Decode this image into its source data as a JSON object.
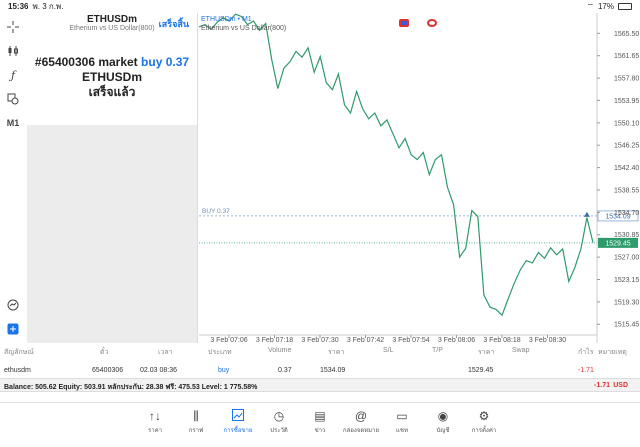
{
  "status": {
    "time": "15:36",
    "date": "พ. 3 ก.พ.",
    "battery": "17%"
  },
  "panel": {
    "title": "ETHUSDm",
    "subtitle": "Etherium vs US Dollar(800)",
    "done": "เสร็จสิ้น",
    "order_line1": "#65400306 market",
    "order_buy": "buy 0.37",
    "order_line2": "ETHUSDm",
    "order_line3": "เสร็จแล้ว"
  },
  "toolbar": {
    "timeframe": "M1"
  },
  "chart": {
    "symbol": "ETHUSDm • M1",
    "description": "Etherium vs US Dollar(800)",
    "buy_line_label": "BUY 0.37",
    "buy_price_tag": "1534.09",
    "current_price_tag": "1529.45"
  },
  "chart_data": {
    "type": "line",
    "x_labels": [
      "3 Feb 07:06",
      "3 Feb 07:18",
      "3 Feb 07:30",
      "3 Feb 07:42",
      "3 Feb 07:54",
      "3 Feb 08:06",
      "3 Feb 08:18",
      "3 Feb 08:30"
    ],
    "y_ticks": [
      "1565.50",
      "1561.65",
      "1557.80",
      "1553.95",
      "1550.10",
      "1546.25",
      "1542.40",
      "1538.55",
      "1534.70",
      "1530.85",
      "1527.00",
      "1523.15",
      "1519.30",
      "1515.45"
    ],
    "ylim": [
      1513.6,
      1569.0
    ],
    "series": [
      {
        "color": "#2e9b6a",
        "values": [
          1566.6,
          1567.0,
          1566.2,
          1567.4,
          1568.2,
          1567.6,
          1568.8,
          1568.4,
          1567.0,
          1567.6,
          1566.0,
          1567.2,
          1562.0,
          1556.0,
          1559.5,
          1560.6,
          1562.4,
          1561.4,
          1563.0,
          1558.8,
          1561.5,
          1557.0,
          1555.8,
          1558.5,
          1553.2,
          1551.8,
          1555.5,
          1552.5,
          1550.8,
          1551.8,
          1549.6,
          1550.6,
          1548.2,
          1545.8,
          1547.4,
          1544.6,
          1543.8,
          1545.0,
          1541.2,
          1543.8,
          1544.6,
          1539.0,
          1536.0,
          1533.8,
          1531.0,
          1534.5,
          1531.8,
          1520.0,
          1518.4,
          1518.0,
          1517.4,
          1519.2,
          1522.0,
          1524.8,
          1526.4,
          1526.0,
          1528.0,
          1527.2,
          1528.6,
          1527.4,
          1528.4,
          1523.0,
          1525.5,
          1528.2,
          1533.6,
          1529.5
        ]
      }
    ],
    "series_raw": [
      1566.6,
      1567.0,
      1566.2,
      1567.4,
      1568.2,
      1567.6,
      1568.8,
      1568.4,
      1567.0,
      1567.6,
      1566.0,
      1567.2,
      1561.0,
      1556.0,
      1559.5,
      1560.6,
      1562.4,
      1561.4,
      1563.0,
      1558.8,
      1561.5,
      1557.0,
      1555.8,
      1558.5,
      1553.2,
      1551.8,
      1555.5,
      1552.5,
      1550.8,
      1551.8,
      1549.6,
      1550.6,
      1548.2,
      1545.8,
      1547.4,
      1544.6,
      1543.8,
      1545.0,
      1541.2,
      1543.8,
      1544.6,
      1539.0,
      1536.0,
      1527.0,
      1528.5,
      1535.0,
      1534.0,
      1520.5,
      1518.4,
      1518.0,
      1517.0,
      1519.8,
      1522.5,
      1524.8,
      1526.4,
      1526.0,
      1527.8,
      1526.8,
      1528.6,
      1527.4,
      1528.4,
      1522.8,
      1525.2,
      1528.4,
      1533.8,
      1529.5
    ],
    "buy_level": 1534.09,
    "current_level": 1529.45
  },
  "table": {
    "headers": [
      "สัญลักษณ์",
      "ตั๋ว",
      "เวลา",
      "ประเภท",
      "Volume",
      "ราคา",
      "S/L",
      "T/P",
      "ราคา",
      "Swap",
      "กำไร",
      "หมายเหตุ"
    ],
    "row": {
      "symbol": "ethusdm",
      "ticket": "65400306",
      "time": "02.03 08:36",
      "type": "buy",
      "volume": "0.37",
      "open_price": "1534.09",
      "price": "1529.45",
      "profit": "-1.71"
    }
  },
  "balance": {
    "text": "Balance: 505.62 Equity: 503.91 หลักประกัน: 28.38 ฟรี: 475.53 Level: 1 775.58%",
    "total": "-1.71",
    "currency": "USD"
  },
  "tabs": [
    {
      "label": "ราคา",
      "icon": "↑↓"
    },
    {
      "label": "กราฟ",
      "icon": "⫼"
    },
    {
      "label": "การซื้อขาย",
      "icon": "📈"
    },
    {
      "label": "ประวัติ",
      "icon": "◷"
    },
    {
      "label": "ข่าว",
      "icon": "▤"
    },
    {
      "label": "กล่องจดหมาย",
      "icon": "@"
    },
    {
      "label": "แชท",
      "icon": "▭"
    },
    {
      "label": "บัญชี",
      "icon": "◉"
    },
    {
      "label": "การตั้งค่า",
      "icon": "⚙"
    }
  ]
}
